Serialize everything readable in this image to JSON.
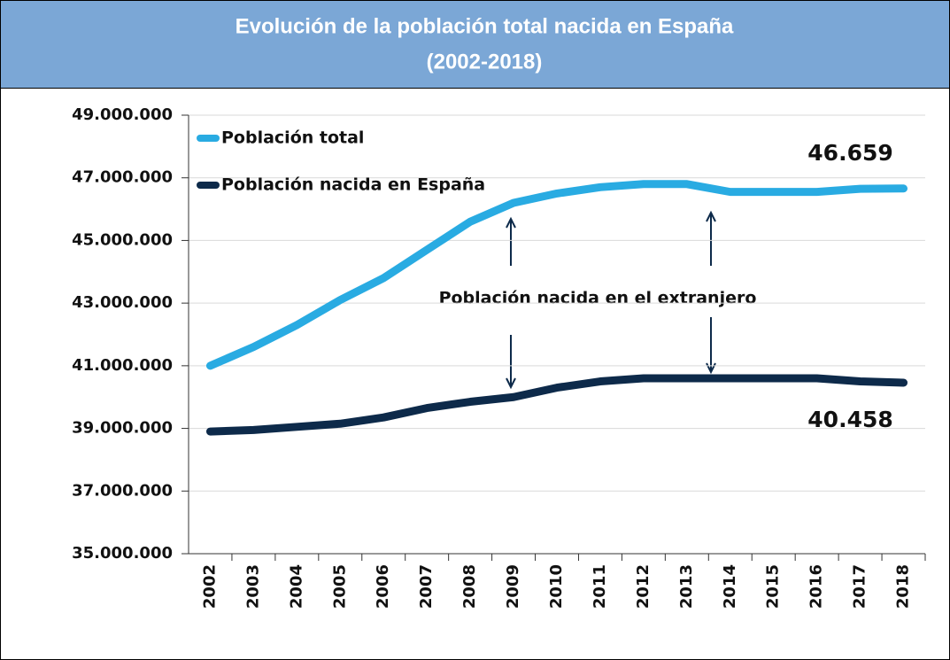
{
  "chart_data": {
    "type": "line",
    "title": "Evolución de la población total nacida en España",
    "subtitle": "(2002-2018)",
    "categories": [
      "2002",
      "2003",
      "2004",
      "2005",
      "2006",
      "2007",
      "2008",
      "2009",
      "2010",
      "2011",
      "2012",
      "2013",
      "2014",
      "2015",
      "2016",
      "2017",
      "2018"
    ],
    "series": [
      {
        "name": "Población total",
        "color": "#29abe2",
        "values": [
          41000000,
          41600000,
          42300000,
          43100000,
          43800000,
          44700000,
          45600000,
          46200000,
          46500000,
          46700000,
          46800000,
          46800000,
          46550000,
          46550000,
          46550000,
          46650000,
          46659000
        ],
        "value_labels": [
          null,
          null,
          null,
          null,
          null,
          null,
          null,
          null,
          null,
          null,
          null,
          null,
          null,
          null,
          null,
          null,
          "46.659"
        ]
      },
      {
        "name": "Población nacida en España",
        "color": "#0d2a4a",
        "values": [
          38900000,
          38950000,
          39050000,
          39150000,
          39350000,
          39650000,
          39850000,
          40000000,
          40300000,
          40500000,
          40600000,
          40600000,
          40600000,
          40600000,
          40600000,
          40500000,
          40458000
        ],
        "value_labels": [
          null,
          null,
          null,
          null,
          null,
          null,
          null,
          null,
          null,
          null,
          null,
          null,
          null,
          null,
          null,
          null,
          "40.458"
        ]
      }
    ],
    "annotation": "Población nacida en el extranjero",
    "ylim": [
      35000000,
      49000000
    ],
    "yticks": [
      {
        "value": 35000000,
        "label": "35.000.000"
      },
      {
        "value": 37000000,
        "label": "37.000.000"
      },
      {
        "value": 39000000,
        "label": "39.000.000"
      },
      {
        "value": 41000000,
        "label": "41.000.000"
      },
      {
        "value": 43000000,
        "label": "43.000.000"
      },
      {
        "value": 45000000,
        "label": "45.000.000"
      },
      {
        "value": 47000000,
        "label": "47.000.000"
      },
      {
        "value": 49000000,
        "label": "49.000.000"
      }
    ],
    "grid": true,
    "legend": "upper left"
  }
}
